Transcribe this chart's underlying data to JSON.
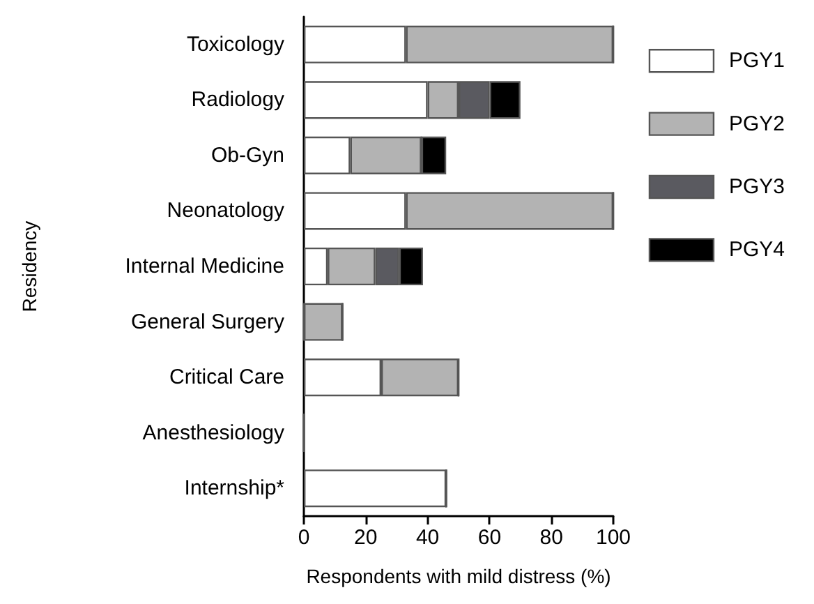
{
  "chart_data": {
    "type": "bar",
    "orientation": "horizontal",
    "stacked": true,
    "xlabel": "Respondents with mild distress (%)",
    "ylabel": "Residency",
    "categories": [
      "Toxicology",
      "Radiology",
      "Ob-Gyn",
      "Neonatology",
      "Internal Medicine",
      "General Surgery",
      "Critical Care",
      "Anesthesiology",
      "Internship*"
    ],
    "series": [
      {
        "name": "PGY1",
        "color": "#ffffff",
        "values": [
          33,
          40,
          15,
          33,
          7.7,
          0,
          25,
          0,
          46
        ]
      },
      {
        "name": "PGY2",
        "color": "#b3b3b3",
        "values": [
          67,
          10,
          23,
          67,
          15.4,
          12.5,
          25,
          0,
          0
        ]
      },
      {
        "name": "PGY3",
        "color": "#5a5a60",
        "values": [
          0,
          10,
          0,
          0,
          7.7,
          0,
          0,
          0,
          0
        ]
      },
      {
        "name": "PGY4",
        "color": "#000000",
        "values": [
          0,
          10,
          8,
          0,
          7.7,
          0,
          0,
          0,
          0
        ]
      }
    ],
    "xlim": [
      0,
      100
    ],
    "xticks": [
      0,
      20,
      40,
      60,
      80,
      100
    ],
    "grid": false,
    "legend": "right"
  }
}
